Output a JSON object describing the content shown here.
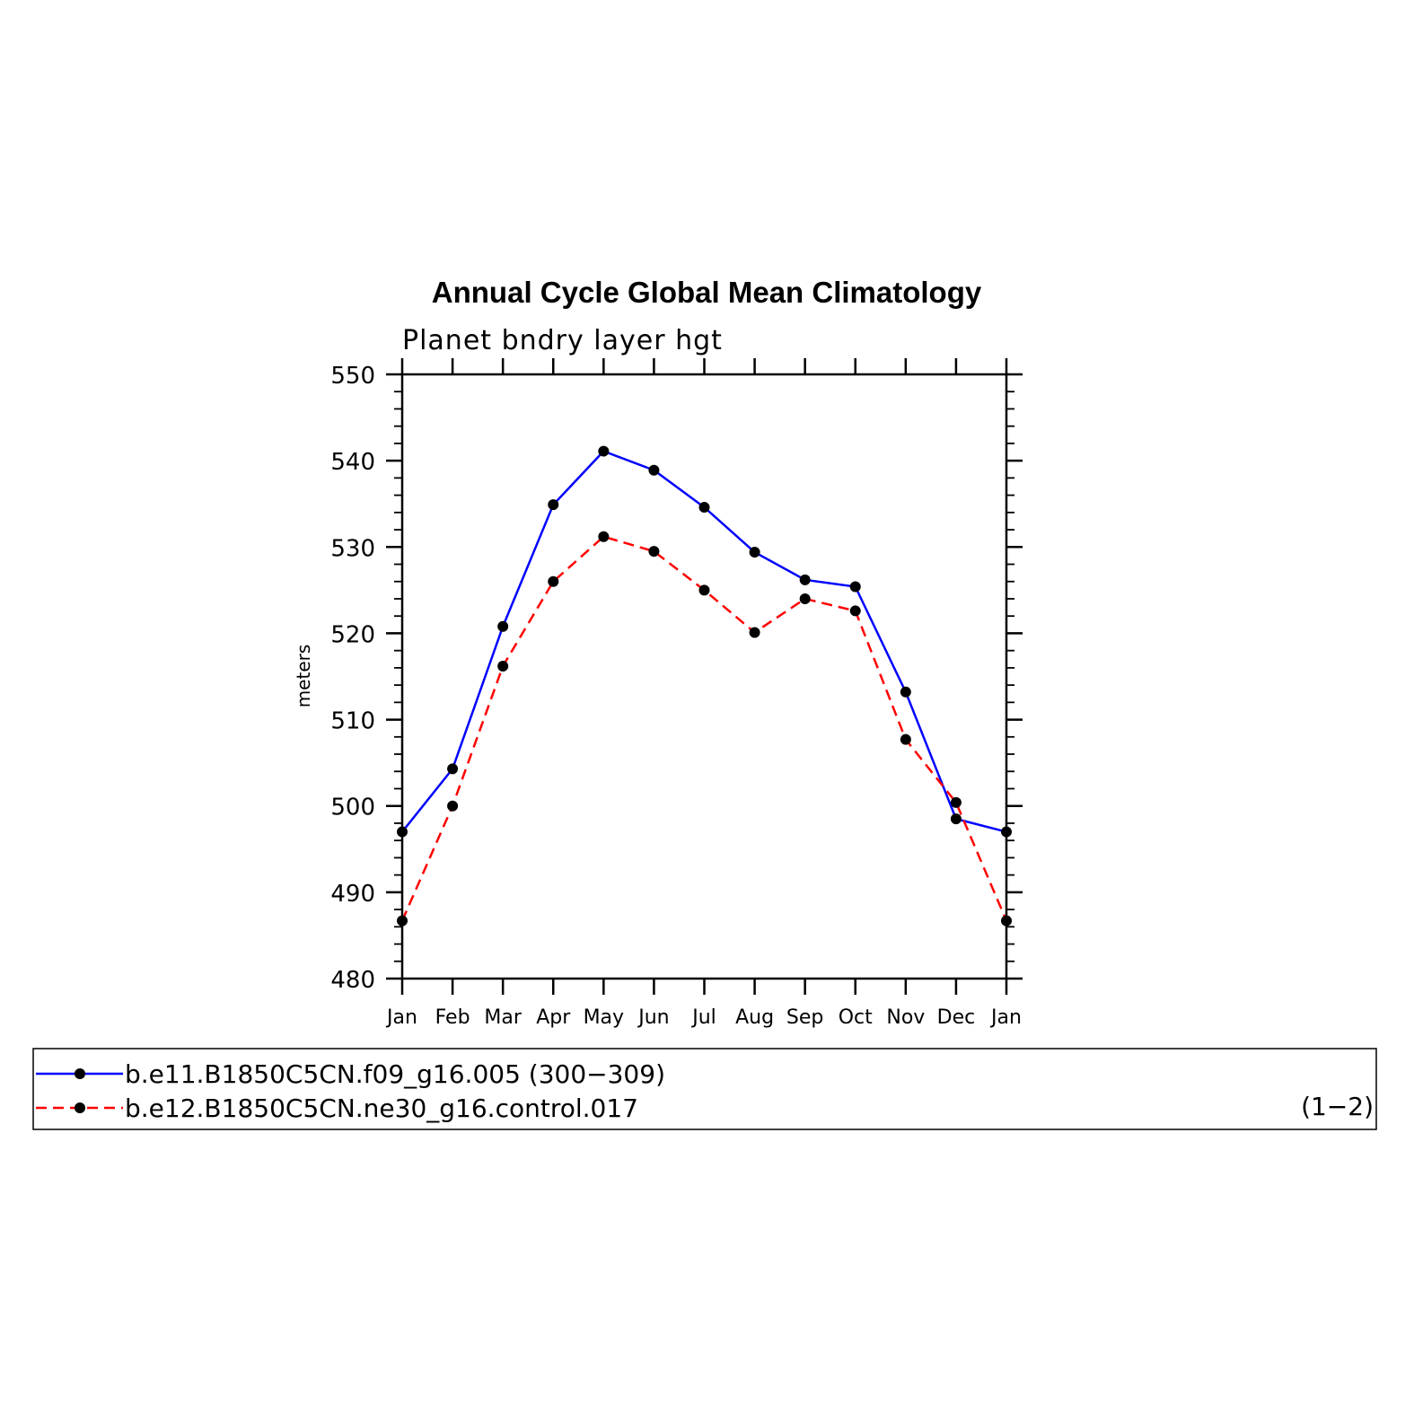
{
  "chart_data": {
    "type": "line",
    "title": "Annual Cycle Global Mean Climatology",
    "subtitle": "Planet bndry layer hgt",
    "ylabel": "meters",
    "xlabel": "",
    "categories": [
      "Jan",
      "Feb",
      "Mar",
      "Apr",
      "May",
      "Jun",
      "Jul",
      "Aug",
      "Sep",
      "Oct",
      "Nov",
      "Dec",
      "Jan"
    ],
    "ylim": [
      480,
      550
    ],
    "yticks": [
      "480",
      "490",
      "500",
      "510",
      "520",
      "530",
      "540",
      "550"
    ],
    "grid": false,
    "legend_position": "bottom",
    "legend_note": "(1−2)",
    "series": [
      {
        "name": "b.e11.B1850C5CN.f09_g16.005 (300−309)",
        "color": "#0000ff",
        "dash": "solid",
        "values": [
          497.0,
          504.3,
          520.8,
          534.9,
          541.1,
          538.9,
          534.6,
          529.4,
          526.2,
          525.4,
          513.2,
          498.5,
          497.0
        ]
      },
      {
        "name": "b.e12.B1850C5CN.ne30_g16.control.017",
        "color": "#ff0000",
        "dash": "dashed",
        "values": [
          486.7,
          500.0,
          516.2,
          526.0,
          531.2,
          529.5,
          525.0,
          520.1,
          524.0,
          522.6,
          507.7,
          500.4,
          486.7
        ]
      }
    ]
  }
}
